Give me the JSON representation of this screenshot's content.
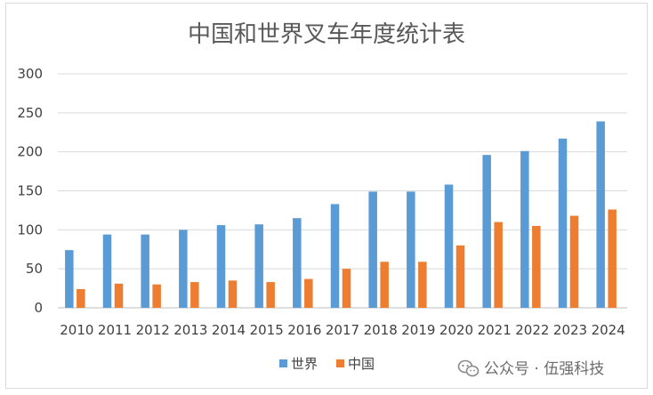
{
  "chart_data": {
    "type": "bar",
    "title": "中国和世界叉车年度统计表",
    "categories": [
      "2010",
      "2011",
      "2012",
      "2013",
      "2014",
      "2015",
      "2016",
      "2017",
      "2018",
      "2019",
      "2020",
      "2021",
      "2022",
      "2023",
      "2024"
    ],
    "series": [
      {
        "name": "世界",
        "color": "#5b9bd5",
        "values": [
          74,
          94,
          94,
          100,
          106,
          107,
          115,
          133,
          149,
          149,
          158,
          196,
          201,
          217,
          239
        ]
      },
      {
        "name": "中国",
        "color": "#ed7d31",
        "values": [
          24,
          31,
          30,
          33,
          35,
          33,
          37,
          50,
          59,
          59,
          80,
          110,
          105,
          118,
          126
        ]
      }
    ],
    "ylim": [
      0,
      300
    ],
    "yticks": [
      "0",
      "50",
      "100",
      "150",
      "200",
      "250",
      "300"
    ],
    "xlabel": "",
    "ylabel": "",
    "grid": true,
    "legend_position": "bottom"
  },
  "watermark": {
    "icon": "wechat-icon",
    "text": "公众号 · 伍强科技"
  }
}
